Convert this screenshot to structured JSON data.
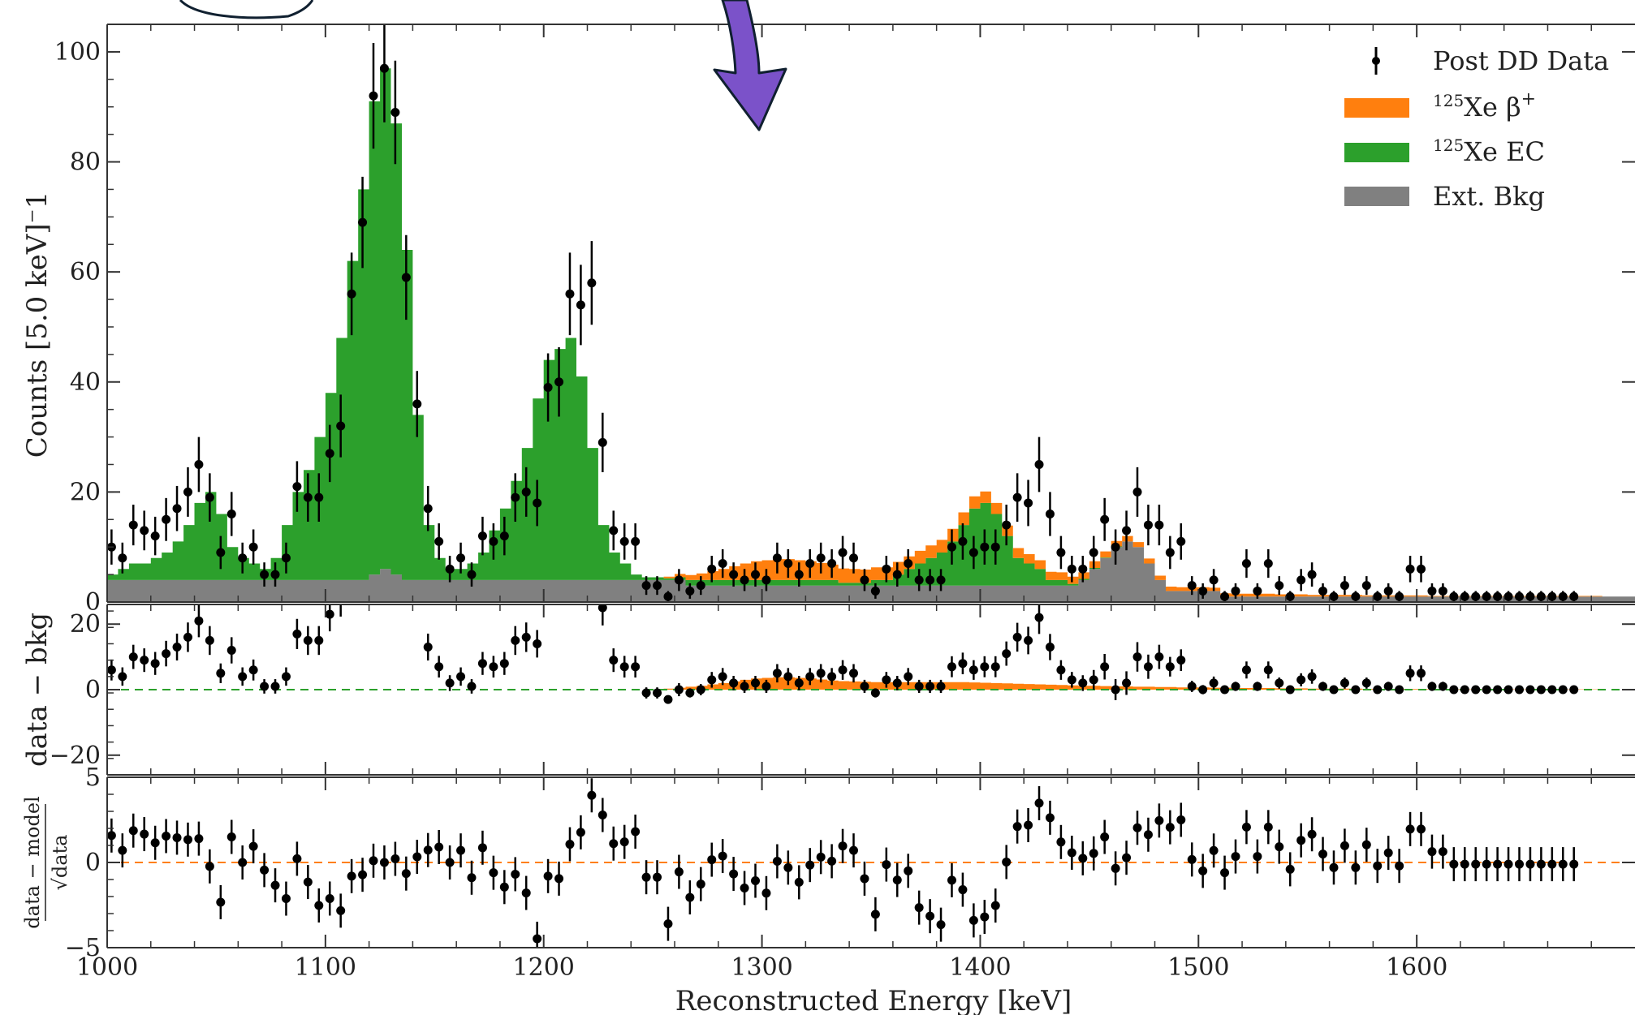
{
  "chart_data": {
    "type": "histogram",
    "xlabel": "Reconstructed Energy [keV]",
    "xlim": [
      1000,
      1700
    ],
    "xticks": [
      1000,
      1100,
      1200,
      1300,
      1400,
      1500,
      1600
    ],
    "bin_width": 5,
    "colors": {
      "beta_plus": "#ff7f0e",
      "ec": "#2ca02c",
      "ext_bkg": "#808080",
      "data": "#000000",
      "zero_line_bkg": "#2ca02c",
      "zero_line_model": "#ff7f0e",
      "arrow": "#7b52c9"
    },
    "legend": {
      "position": "top-right",
      "entries": [
        {
          "key": "data",
          "label": "Post DD Data"
        },
        {
          "key": "beta_plus",
          "sup": "125",
          "label": "Xe β",
          "sup2": "+"
        },
        {
          "key": "ec",
          "sup": "125",
          "label": "Xe EC"
        },
        {
          "key": "ext_bkg",
          "label": "Ext. Bkg"
        }
      ]
    },
    "panels": {
      "main": {
        "ylabel": "Counts [5.0 keV]⁻1",
        "ylim": [
          0,
          105
        ],
        "yticks": [
          0,
          20,
          40,
          60,
          80,
          100
        ],
        "bins": [
          1000,
          1005,
          1010,
          1015,
          1020,
          1025,
          1030,
          1035,
          1040,
          1045,
          1050,
          1055,
          1060,
          1065,
          1070,
          1075,
          1080,
          1085,
          1090,
          1095,
          1100,
          1105,
          1110,
          1115,
          1120,
          1125,
          1130,
          1135,
          1140,
          1145,
          1150,
          1155,
          1160,
          1165,
          1170,
          1175,
          1180,
          1185,
          1190,
          1195,
          1200,
          1205,
          1210,
          1215,
          1220,
          1225,
          1230,
          1235,
          1240,
          1245,
          1250,
          1255,
          1260,
          1265,
          1270,
          1275,
          1280,
          1285,
          1290,
          1295,
          1300,
          1305,
          1310,
          1315,
          1320,
          1325,
          1330,
          1335,
          1340,
          1345,
          1350,
          1355,
          1360,
          1365,
          1370,
          1375,
          1380,
          1385,
          1390,
          1395,
          1400,
          1405,
          1410,
          1415,
          1420,
          1425,
          1430,
          1435,
          1440,
          1445,
          1450,
          1455,
          1460,
          1465,
          1470,
          1475,
          1480,
          1485,
          1490,
          1495,
          1500,
          1505,
          1510,
          1515,
          1520,
          1525,
          1530,
          1535,
          1540,
          1545,
          1550,
          1555,
          1560,
          1565,
          1570,
          1575,
          1580,
          1585,
          1590,
          1595,
          1600,
          1605,
          1610,
          1615,
          1620,
          1625,
          1630,
          1635,
          1640,
          1645,
          1650,
          1655,
          1660,
          1665,
          1670,
          1675,
          1680,
          1685,
          1690,
          1695,
          1700
        ],
        "ext_bkg": [
          4,
          4,
          4,
          4,
          4,
          4,
          4,
          4,
          4,
          4,
          4,
          4,
          4,
          4,
          4,
          4,
          4,
          4,
          4,
          4,
          4,
          4,
          4,
          4,
          5,
          6,
          5,
          4,
          4,
          4,
          4,
          4,
          4,
          4,
          4,
          4,
          4,
          4,
          4,
          4,
          4,
          4,
          4,
          4,
          4,
          4,
          4,
          4,
          4,
          4,
          4,
          4,
          4,
          3,
          3,
          3,
          3,
          3,
          3,
          3,
          3,
          3,
          3,
          3,
          3,
          3,
          3,
          3,
          3,
          3,
          3,
          3,
          3,
          3,
          3,
          3,
          3,
          3,
          3,
          3,
          3,
          3,
          3,
          3,
          3,
          3,
          3,
          3,
          3,
          4,
          6,
          8,
          10,
          11,
          10,
          7,
          4,
          2,
          2,
          2,
          2,
          2,
          1,
          1,
          1,
          1,
          1,
          1,
          1,
          1,
          1,
          1,
          1,
          1,
          1,
          1,
          1,
          1,
          1,
          1,
          1,
          1,
          1,
          1,
          1,
          1,
          1,
          1,
          1,
          1,
          1,
          1,
          1,
          1,
          1,
          1,
          1,
          1,
          1,
          1
        ],
        "ec": [
          1,
          2,
          3,
          3,
          4,
          5,
          7,
          10,
          14,
          16,
          12,
          6,
          4,
          3,
          2,
          4,
          10,
          16,
          20,
          26,
          34,
          44,
          58,
          71,
          86,
          91,
          82,
          60,
          30,
          10,
          4,
          2,
          2,
          3,
          5,
          9,
          13,
          18,
          24,
          33,
          40,
          42,
          44,
          37,
          24,
          10,
          5,
          3,
          1,
          0.5,
          0.5,
          0.3,
          0.5,
          1,
          1,
          1,
          1,
          1,
          1,
          1,
          1,
          1,
          1,
          1,
          1,
          1,
          1,
          0.5,
          0.5,
          0.5,
          1,
          1,
          2,
          3,
          4,
          5,
          6,
          8,
          11,
          14,
          15,
          13,
          9,
          5,
          4,
          3,
          1,
          1,
          0.3,
          0.2,
          0.2,
          0.1,
          0.1,
          0,
          0,
          0,
          0,
          0,
          0,
          0,
          0,
          0,
          0,
          0,
          0,
          0,
          0,
          0,
          0,
          0,
          0,
          0,
          0,
          0,
          0,
          0,
          0,
          0,
          0,
          0,
          0,
          0,
          0,
          0,
          0,
          0,
          0,
          0,
          0,
          0,
          0,
          0
        ],
        "beta_plus": [
          0,
          0,
          0,
          0,
          0,
          0,
          0,
          0,
          0,
          0,
          0,
          0,
          0,
          0,
          0,
          0,
          0,
          0,
          0,
          0,
          0,
          0,
          0,
          0,
          0,
          0,
          0,
          0,
          0,
          0,
          0,
          0,
          0,
          0,
          0,
          0,
          0,
          0,
          0,
          0,
          0,
          0,
          0,
          0,
          0,
          0,
          0,
          0,
          0,
          0,
          0,
          0.3,
          0.6,
          0.9,
          1.2,
          1.6,
          2.0,
          2.5,
          3.0,
          3.4,
          3.6,
          3.8,
          3.8,
          3.6,
          3.4,
          3.1,
          2.8,
          2.6,
          2.5,
          2.4,
          2.3,
          2.3,
          2.3,
          2.3,
          2.3,
          2.3,
          2.3,
          2.3,
          2.3,
          2.2,
          2.1,
          2.0,
          1.9,
          1.8,
          1.7,
          1.6,
          1.5,
          1.4,
          1.3,
          1.2,
          1.2,
          1.1,
          1.0,
          1.0,
          0.9,
          0.9,
          0.8,
          0.8,
          0.7,
          0.7,
          0.7,
          0.6,
          0.6,
          0.5,
          0.5,
          0.5,
          0.5,
          0.4,
          0.4,
          0.4,
          0.3,
          0.3,
          0.3,
          0.3,
          0.3,
          0.2,
          0.2,
          0.2,
          0.2,
          0.2,
          0.2,
          0.1,
          0.1,
          0.1,
          0.1,
          0.1,
          0.1,
          0.1,
          0.1,
          0.1,
          0.1,
          0.1,
          0.1,
          0.1,
          0.1,
          0.1,
          0.1
        ],
        "data": [
          [
            1002,
            10,
            3.2
          ],
          [
            1007,
            8,
            2.8
          ],
          [
            1012,
            14,
            3.7
          ],
          [
            1017,
            13,
            3.6
          ],
          [
            1022,
            12,
            3.5
          ],
          [
            1027,
            15,
            3.9
          ],
          [
            1032,
            17,
            4.1
          ],
          [
            1037,
            20,
            4.5
          ],
          [
            1042,
            25,
            5
          ],
          [
            1047,
            19,
            4.4
          ],
          [
            1052,
            9,
            3
          ],
          [
            1057,
            16,
            4
          ],
          [
            1062,
            8,
            2.8
          ],
          [
            1067,
            10,
            3.2
          ],
          [
            1072,
            5,
            2.2
          ],
          [
            1077,
            5,
            2.2
          ],
          [
            1082,
            8,
            2.8
          ],
          [
            1087,
            21,
            4.6
          ],
          [
            1092,
            19,
            4.4
          ],
          [
            1097,
            19,
            4.4
          ],
          [
            1102,
            27,
            5.2
          ],
          [
            1107,
            32,
            5.7
          ],
          [
            1112,
            56,
            7.5
          ],
          [
            1117,
            69,
            8.3
          ],
          [
            1122,
            92,
            9.6
          ],
          [
            1127,
            97,
            9.8
          ],
          [
            1132,
            89,
            9.4
          ],
          [
            1137,
            59,
            7.7
          ],
          [
            1142,
            36,
            6
          ],
          [
            1147,
            17,
            4.1
          ],
          [
            1152,
            11,
            3.3
          ],
          [
            1157,
            6,
            2.4
          ],
          [
            1162,
            8,
            2.8
          ],
          [
            1167,
            5,
            2.2
          ],
          [
            1172,
            12,
            3.5
          ],
          [
            1177,
            11,
            3.3
          ],
          [
            1182,
            12,
            3.5
          ],
          [
            1187,
            19,
            4.4
          ],
          [
            1192,
            20,
            4.5
          ],
          [
            1197,
            18,
            4.2
          ],
          [
            1202,
            39,
            6.2
          ],
          [
            1207,
            40,
            6.3
          ],
          [
            1212,
            56,
            7.5
          ],
          [
            1217,
            54,
            7.3
          ],
          [
            1222,
            58,
            7.6
          ],
          [
            1227,
            29,
            5.4
          ],
          [
            1232,
            13,
            3.6
          ],
          [
            1237,
            11,
            3.3
          ],
          [
            1242,
            11,
            3.3
          ],
          [
            1247,
            3,
            1.7
          ],
          [
            1252,
            3,
            1.7
          ],
          [
            1257,
            1,
            1
          ],
          [
            1262,
            4,
            2
          ],
          [
            1267,
            2,
            1.4
          ],
          [
            1272,
            3,
            1.7
          ],
          [
            1277,
            6,
            2.4
          ],
          [
            1282,
            7,
            2.6
          ],
          [
            1287,
            5,
            2.2
          ],
          [
            1292,
            4,
            2
          ],
          [
            1297,
            5,
            2.2
          ],
          [
            1302,
            4,
            2
          ],
          [
            1307,
            8,
            2.8
          ],
          [
            1312,
            7,
            2.6
          ],
          [
            1317,
            5,
            2.2
          ],
          [
            1322,
            7,
            2.6
          ],
          [
            1327,
            8,
            2.8
          ],
          [
            1332,
            7,
            2.6
          ],
          [
            1337,
            9,
            3
          ],
          [
            1342,
            8,
            2.8
          ],
          [
            1347,
            4,
            2
          ],
          [
            1352,
            2,
            1.4
          ],
          [
            1357,
            6,
            2.4
          ],
          [
            1362,
            5,
            2.2
          ],
          [
            1367,
            7,
            2.6
          ],
          [
            1372,
            4,
            2
          ],
          [
            1377,
            4,
            2
          ],
          [
            1382,
            4,
            2
          ],
          [
            1387,
            10,
            3.2
          ],
          [
            1392,
            11,
            3.3
          ],
          [
            1397,
            9,
            3
          ],
          [
            1402,
            10,
            3.2
          ],
          [
            1407,
            10,
            3.2
          ],
          [
            1412,
            14,
            3.7
          ],
          [
            1417,
            19,
            4.4
          ],
          [
            1422,
            18,
            4.2
          ],
          [
            1427,
            25,
            5
          ],
          [
            1432,
            16,
            4
          ],
          [
            1437,
            9,
            3
          ],
          [
            1442,
            6,
            2.4
          ],
          [
            1447,
            6,
            2.4
          ],
          [
            1452,
            9,
            3
          ],
          [
            1457,
            15,
            3.9
          ],
          [
            1462,
            10,
            3.2
          ],
          [
            1467,
            13,
            3.6
          ],
          [
            1472,
            20,
            4.5
          ],
          [
            1477,
            14,
            3.7
          ],
          [
            1482,
            14,
            3.7
          ],
          [
            1487,
            9,
            3
          ],
          [
            1492,
            11,
            3.3
          ],
          [
            1497,
            3,
            1.7
          ],
          [
            1502,
            2,
            1.4
          ],
          [
            1507,
            4,
            2
          ],
          [
            1512,
            1,
            1
          ],
          [
            1517,
            2,
            1.4
          ],
          [
            1522,
            7,
            2.6
          ],
          [
            1527,
            2,
            1.4
          ],
          [
            1532,
            7,
            2.6
          ],
          [
            1537,
            3,
            1.7
          ],
          [
            1542,
            1,
            1
          ],
          [
            1547,
            4,
            2
          ],
          [
            1552,
            5,
            2.2
          ],
          [
            1557,
            2,
            1.4
          ],
          [
            1562,
            1,
            1
          ],
          [
            1567,
            3,
            1.7
          ],
          [
            1572,
            1,
            1
          ],
          [
            1577,
            3,
            1.7
          ],
          [
            1582,
            1,
            1
          ],
          [
            1587,
            2,
            1.4
          ],
          [
            1592,
            1,
            1
          ],
          [
            1597,
            6,
            2.4
          ],
          [
            1602,
            6,
            2.4
          ],
          [
            1607,
            2,
            1.4
          ],
          [
            1612,
            2,
            1.4
          ],
          [
            1617,
            1,
            1
          ],
          [
            1622,
            1,
            1
          ],
          [
            1627,
            1,
            1
          ],
          [
            1632,
            1,
            1
          ],
          [
            1637,
            1,
            1
          ],
          [
            1642,
            1,
            1
          ],
          [
            1647,
            1,
            1
          ],
          [
            1652,
            1,
            1
          ],
          [
            1657,
            1,
            1
          ],
          [
            1662,
            1,
            1
          ],
          [
            1667,
            1,
            1
          ],
          [
            1672,
            1,
            1
          ]
        ]
      },
      "residual_bkg": {
        "ylabel": "data − bkg",
        "ylim": [
          -26,
          26
        ],
        "yticks": [
          -20,
          0,
          20
        ]
      },
      "residual_model": {
        "ylabel_num": "data − model",
        "ylabel_den": "√data",
        "ylim": [
          -5,
          5
        ],
        "yticks": [
          -5,
          0,
          5
        ]
      }
    }
  }
}
